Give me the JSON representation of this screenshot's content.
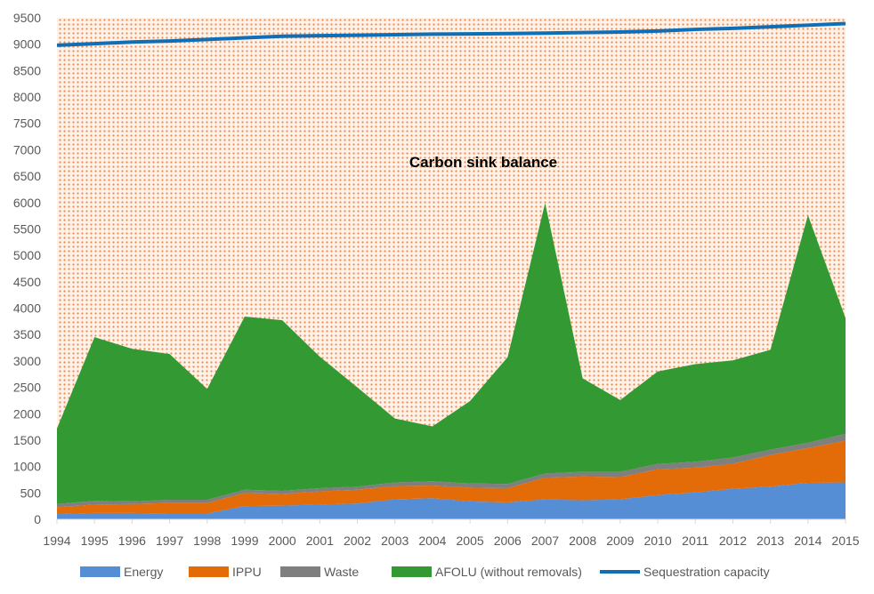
{
  "chart_data": {
    "type": "area",
    "stacked": true,
    "x": [
      1994,
      1995,
      1996,
      1997,
      1998,
      1999,
      2000,
      2001,
      2002,
      2003,
      2004,
      2005,
      2006,
      2007,
      2008,
      2009,
      2010,
      2011,
      2012,
      2013,
      2014,
      2015
    ],
    "ylim": [
      0,
      9500
    ],
    "yticks": [
      0,
      500,
      1000,
      1500,
      2000,
      2500,
      3000,
      3500,
      4000,
      4500,
      5000,
      5500,
      6000,
      6500,
      7000,
      7500,
      8000,
      8500,
      9000,
      9500
    ],
    "grid": false,
    "legend": "bottom",
    "annotation": "Carbon sink balance",
    "series": [
      {
        "name": "Energy",
        "color": "#558ED5",
        "values": [
          100,
          120,
          120,
          110,
          110,
          250,
          260,
          280,
          300,
          380,
          400,
          340,
          320,
          380,
          360,
          380,
          460,
          510,
          580,
          620,
          690,
          700
        ]
      },
      {
        "name": "IPPU",
        "color": "#E36C09",
        "values": [
          130,
          160,
          170,
          200,
          200,
          250,
          220,
          250,
          260,
          250,
          240,
          260,
          270,
          410,
          450,
          420,
          490,
          470,
          470,
          600,
          660,
          790
        ]
      },
      {
        "name": "Waste",
        "color": "#7F7F7F",
        "values": [
          60,
          70,
          50,
          60,
          60,
          60,
          60,
          60,
          60,
          70,
          80,
          80,
          80,
          80,
          90,
          100,
          100,
          110,
          120,
          100,
          100,
          130
        ]
      },
      {
        "name": "AFOLU (without removals)",
        "color": "#339933",
        "values": [
          1430,
          3100,
          2890,
          2760,
          2100,
          3280,
          3230,
          2490,
          1880,
          1210,
          1040,
          1560,
          2400,
          5120,
          1770,
          1360,
          1750,
          1850,
          1840,
          1890,
          4310,
          2190
        ]
      }
    ],
    "line_series": {
      "name": "Sequestration capacity",
      "color": "#0F6EB5",
      "values": [
        8980,
        9010,
        9040,
        9060,
        9090,
        9120,
        9150,
        9160,
        9170,
        9180,
        9190,
        9195,
        9200,
        9210,
        9220,
        9230,
        9250,
        9280,
        9300,
        9330,
        9360,
        9390
      ]
    },
    "sink_fill_color": "#F4B183"
  }
}
